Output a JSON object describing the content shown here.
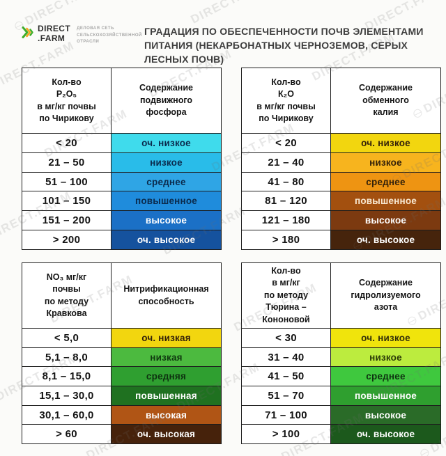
{
  "brand": {
    "logo_name": "DIRECT",
    "logo_suffix": ".FARM",
    "tagline": "ДЕЛОВАЯ СЕТЬ\nСЕЛЬСКОХОЗЯЙСТВЕННОЙ\nОТРАСЛИ",
    "chevron_colors": [
      "#3FAE2A",
      "#F5A623",
      "#3FAE2A"
    ]
  },
  "title": "ГРАДАЦИЯ ПО ОБЕСПЕЧЕННОСТИ ПОЧВ ЭЛЕМЕНТАМИ ПИТАНИЯ (НЕКАРБОНАТНЫХ ЧЕРНОЗЕМОВ, СЕРЫХ ЛЕСНЫХ ПОЧВ)",
  "watermark": {
    "text": "DIRECT.FARM",
    "color": "#6f6f6f"
  },
  "chart_data": [
    {
      "type": "table",
      "name": "mobile-phosphorus",
      "header_left": "Кол-во\nP₂O₅\nв мг/кг почвы\nпо Чирикову",
      "header_right": "Содержание\nподвижного\nфосфора",
      "rows": [
        {
          "range": "< 20",
          "label": "оч. низкое",
          "bg": "#3FDBEC",
          "fg": "#0B2B4D"
        },
        {
          "range": "21 – 50",
          "label": "низкое",
          "bg": "#29BCE9",
          "fg": "#0B2B4D"
        },
        {
          "range": "51 – 100",
          "label": "среднее",
          "bg": "#2FA5E5",
          "fg": "#0B2B4D"
        },
        {
          "range": "101 – 150",
          "label": "повышенное",
          "bg": "#1F8CDC",
          "fg": "#0B2B4D"
        },
        {
          "range": "151 – 200",
          "label": "высокое",
          "bg": "#1B70C6",
          "fg": "#FFFFFF"
        },
        {
          "range": "> 200",
          "label": "оч. высокое",
          "bg": "#15529E",
          "fg": "#FFFFFF"
        }
      ]
    },
    {
      "type": "table",
      "name": "exchange-potassium",
      "header_left": "Кол-во\nК₂О\nв мг/кг почвы\nпо Чирикову",
      "header_right": "Содержание\nобменного\nкалия",
      "rows": [
        {
          "range": "< 20",
          "label": "оч. низкое",
          "bg": "#F2D60F",
          "fg": "#33210A"
        },
        {
          "range": "21 – 40",
          "label": "низкое",
          "bg": "#F7B41E",
          "fg": "#33210A"
        },
        {
          "range": "41 – 80",
          "label": "среднее",
          "bg": "#EE9412",
          "fg": "#33210A"
        },
        {
          "range": "81 – 120",
          "label": "повышенное",
          "bg": "#A3500F",
          "fg": "#F9E9D2"
        },
        {
          "range": "121 – 180",
          "label": "высокое",
          "bg": "#7C3A10",
          "fg": "#FFFFFF"
        },
        {
          "range": "> 180",
          "label": "оч. высокое",
          "bg": "#46240C",
          "fg": "#FFFFFF"
        }
      ]
    },
    {
      "type": "table",
      "name": "nitrification-capacity",
      "header_left": "NO₃ мг/кг\nпочвы\nпо методу\nКравкова",
      "header_right": "Нитрификационная\nспособность",
      "rows": [
        {
          "range": "< 5,0",
          "label": "оч. низкая",
          "bg": "#F2D60F",
          "fg": "#33210A"
        },
        {
          "range": "5,1 – 8,0",
          "label": "низкая",
          "bg": "#4CBA3F",
          "fg": "#103A10"
        },
        {
          "range": "8,1 – 15,0",
          "label": "средняя",
          "bg": "#2F9F30",
          "fg": "#0E3310"
        },
        {
          "range": "15,1 – 30,0",
          "label": "повышенная",
          "bg": "#1F7120",
          "fg": "#FFFFFF"
        },
        {
          "range": "30,1 – 60,0",
          "label": "высокая",
          "bg": "#B05515",
          "fg": "#FFFFFF"
        },
        {
          "range": "> 60",
          "label": "оч. высокая",
          "bg": "#46220B",
          "fg": "#FFFFFF"
        }
      ]
    },
    {
      "type": "table",
      "name": "hydrolyzable-nitrogen",
      "header_left": "Кол-во\nв мг/кг\nпо методу\nТюрина –\nКононовой",
      "header_right": "Содержание\nгидролизуемого\nазота",
      "rows": [
        {
          "range": "< 30",
          "label": "оч. низкое",
          "bg": "#F0E40C",
          "fg": "#33300A"
        },
        {
          "range": "31 – 40",
          "label": "низкое",
          "bg": "#BCEC3E",
          "fg": "#2A3A08"
        },
        {
          "range": "41 – 50",
          "label": "среднее",
          "bg": "#3FC83E",
          "fg": "#0E3310"
        },
        {
          "range": "51 – 70",
          "label": "повышенное",
          "bg": "#2F9F2F",
          "fg": "#FFFFFF"
        },
        {
          "range": "71 – 100",
          "label": "высокое",
          "bg": "#2A6B28",
          "fg": "#FFFFFF"
        },
        {
          "range": "> 100",
          "label": "оч. высокое",
          "bg": "#1C591C",
          "fg": "#FFFFFF"
        }
      ]
    }
  ]
}
